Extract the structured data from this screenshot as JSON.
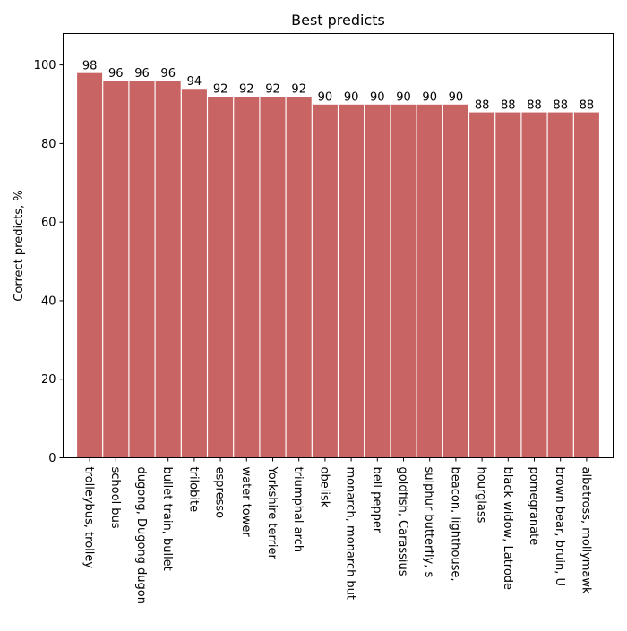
{
  "chart_data": {
    "type": "bar",
    "title": "Best predicts",
    "xlabel": "",
    "ylabel": "Correct predicts, %",
    "ylim": [
      0,
      108
    ],
    "yticks": [
      0,
      20,
      40,
      60,
      80,
      100
    ],
    "bar_color": "#c86464",
    "categories": [
      "trolleybus, trolley",
      "school bus",
      "dugong, Dugong dugon",
      "bullet train, bullet",
      "trilobite",
      "espresso",
      "water tower",
      "Yorkshire terrier",
      "triumphal arch",
      "obelisk",
      "monarch, monarch but",
      "bell pepper",
      "goldfish, Carassius",
      "sulphur butterfly, s",
      "beacon, lighthouse,",
      "hourglass",
      "black widow, Latrode",
      "pomegranate",
      "brown bear, bruin, U",
      "albatross, mollymawk"
    ],
    "values": [
      98,
      96,
      96,
      96,
      94,
      92,
      92,
      92,
      92,
      90,
      90,
      90,
      90,
      90,
      90,
      88,
      88,
      88,
      88,
      88
    ],
    "value_labels": [
      "98",
      "96",
      "96",
      "96",
      "94",
      "92",
      "92",
      "92",
      "92",
      "90",
      "90",
      "90",
      "90",
      "90",
      "90",
      "88",
      "88",
      "88",
      "88",
      "88"
    ]
  }
}
